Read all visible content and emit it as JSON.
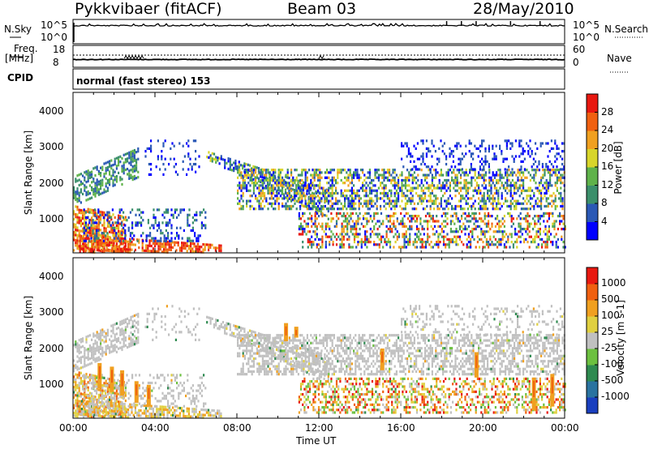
{
  "header": {
    "radar": "Pykkvibaer (fitACF)",
    "beam": "Beam 03",
    "date": "28/May/2010"
  },
  "top_panels": {
    "nsky_label": "N.Sky",
    "nsky_ticks": [
      "10^5",
      "10^0"
    ],
    "nsearch_label": "N.Search",
    "nsearch_ticks": [
      "10^5",
      "10^0"
    ],
    "freq_label_1": "Freq.",
    "freq_label_2": "[MHz]",
    "freq_ticks": [
      "18",
      "8"
    ],
    "nave_label": "Nave",
    "nave_ticks": [
      "60",
      "0"
    ],
    "cpid_label": "CPID",
    "cpid_value": "normal (fast stereo) 153"
  },
  "power_panel": {
    "ylabel": "Slant Range [km]",
    "yticks": [
      "4000",
      "3000",
      "2000",
      "1000"
    ],
    "colorbar_label": "Power [dB]",
    "colorbar_ticks": [
      "28",
      "24",
      "20",
      "16",
      "12",
      "8",
      "4"
    ],
    "colors": [
      "#0000ff",
      "#2a58b5",
      "#3b8f6b",
      "#5fb24a",
      "#d8d52a",
      "#f0a020",
      "#f06010",
      "#e81810"
    ]
  },
  "velocity_panel": {
    "ylabel": "Slant Range [km]",
    "yticks": [
      "4000",
      "3000",
      "2000",
      "1000"
    ],
    "colorbar_label": "Velocity [m s-1]",
    "colorbar_ticks": [
      "1000",
      "500",
      "100",
      "25",
      "-25",
      "-100",
      "-500",
      "-1000"
    ],
    "colors": [
      "#1a3fbf",
      "#2a73a0",
      "#2e8a50",
      "#6cc040",
      "#c0c0c0",
      "#e0d040",
      "#f0a020",
      "#f06010",
      "#e81810"
    ]
  },
  "xaxis": {
    "ticks": [
      "00:00",
      "04:00",
      "08:00",
      "12:00",
      "16:00",
      "20:00",
      "00:00"
    ],
    "label": "Time UT"
  },
  "chart_data": [
    {
      "type": "line",
      "title": "",
      "xlabel": "Time UT",
      "ylabel": "N.Sky / N.Search",
      "yscale": "log",
      "ylim": [
        1,
        100000
      ],
      "x": [
        "00:00",
        "04:00",
        "08:00",
        "12:00",
        "16:00",
        "20:00",
        "00:00"
      ],
      "series": [
        {
          "name": "N.Sky",
          "values": [
            3000,
            3500,
            3200,
            3400,
            3000,
            3800,
            4000
          ]
        },
        {
          "name": "N.Search",
          "values": [
            3000,
            3000,
            3000,
            3000,
            3000,
            3000,
            3000
          ]
        }
      ]
    },
    {
      "type": "line",
      "xlabel": "Time UT",
      "ylabel": "Freq. [MHz]",
      "ylim": [
        8,
        18
      ],
      "x": [
        "00:00",
        "04:00",
        "08:00",
        "12:00",
        "16:00",
        "20:00",
        "00:00"
      ],
      "series": [
        {
          "name": "Freq.",
          "values": [
            10.0,
            10.0,
            10.0,
            10.0,
            10.0,
            10.0,
            10.0
          ]
        },
        {
          "name": "Nave",
          "values": [
            34,
            34,
            34,
            34,
            34,
            34,
            34
          ]
        }
      ]
    },
    {
      "type": "heatmap",
      "xlabel": "Time UT",
      "ylabel": "Slant Range [km]",
      "colorbar": "Power [dB]",
      "x": [
        "00:00",
        "04:00",
        "08:00",
        "12:00",
        "16:00",
        "20:00",
        "00:00"
      ],
      "yticks": [
        1000,
        2000,
        3000,
        4000
      ],
      "ylim": [
        180,
        4600
      ],
      "zlim": [
        0,
        30
      ]
    },
    {
      "type": "heatmap",
      "xlabel": "Time UT",
      "ylabel": "Slant Range [km]",
      "colorbar": "Velocity [m s-1]",
      "x": [
        "00:00",
        "04:00",
        "08:00",
        "12:00",
        "16:00",
        "20:00",
        "00:00"
      ],
      "yticks": [
        1000,
        2000,
        3000,
        4000
      ],
      "ylim": [
        180,
        4600
      ],
      "zlim": [
        -1000,
        1000
      ]
    }
  ]
}
